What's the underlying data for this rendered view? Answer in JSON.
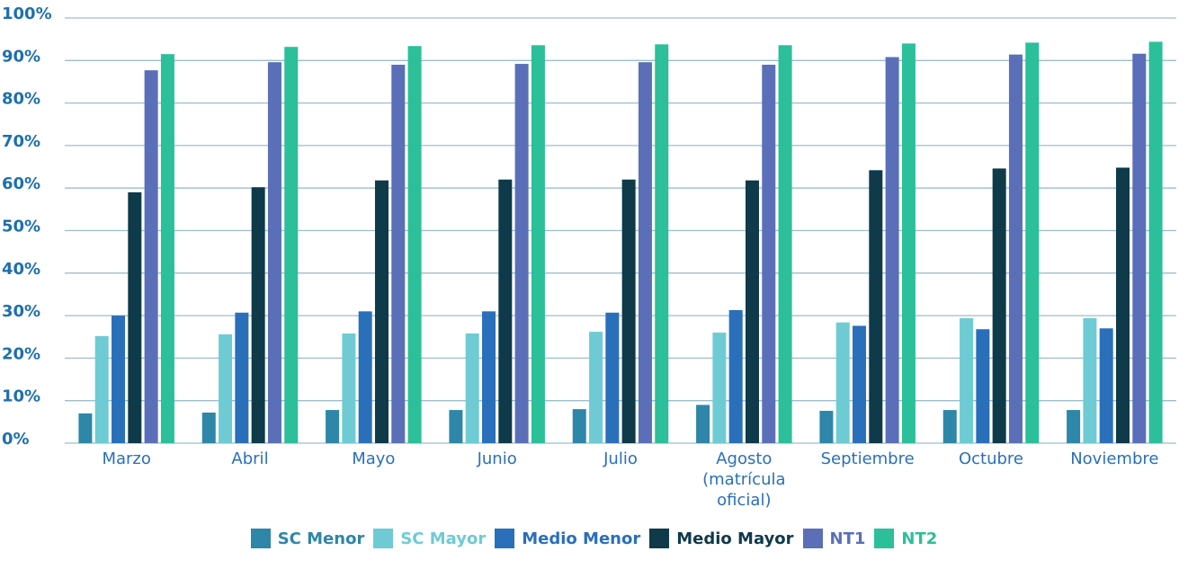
{
  "chart_data": {
    "type": "bar",
    "categories": [
      "Marzo",
      "Abril",
      "Mayo",
      "Junio",
      "Julio",
      "Agosto (matrícula oficial)",
      "Septiembre",
      "Octubre",
      "Noviembre"
    ],
    "series": [
      {
        "name": "SC Menor",
        "color": "#2e86a8",
        "values": [
          7.0,
          7.2,
          7.8,
          7.8,
          8.0,
          9.0,
          7.6,
          7.8,
          7.8
        ]
      },
      {
        "name": "SC Mayor",
        "color": "#6ecbd3",
        "values": [
          25.2,
          25.6,
          25.8,
          25.8,
          26.2,
          26.0,
          28.4,
          29.4,
          29.4
        ]
      },
      {
        "name": "Medio Menor",
        "color": "#2a6fba",
        "values": [
          30.0,
          30.7,
          31.0,
          31.0,
          30.7,
          31.3,
          27.6,
          26.8,
          27.0
        ]
      },
      {
        "name": "Medio Mayor",
        "color": "#0e3a4a",
        "values": [
          59.0,
          60.2,
          61.8,
          62.0,
          62.0,
          61.8,
          64.2,
          64.6,
          64.8
        ]
      },
      {
        "name": "NT1",
        "color": "#5b6fb8",
        "values": [
          87.7,
          89.6,
          89.0,
          89.2,
          89.6,
          89.0,
          90.8,
          91.4,
          91.6
        ]
      },
      {
        "name": "NT2",
        "color": "#2bbf9a",
        "values": [
          91.5,
          93.2,
          93.4,
          93.6,
          93.8,
          93.6,
          94.0,
          94.2,
          94.4
        ]
      }
    ],
    "ylim": [
      0,
      100
    ],
    "yticks": [
      {
        "value": 0,
        "label": "0%"
      },
      {
        "value": 10,
        "label": "10%"
      },
      {
        "value": 20,
        "label": "20%"
      },
      {
        "value": 30,
        "label": "30%"
      },
      {
        "value": 40,
        "label": "40%"
      },
      {
        "value": 50,
        "label": "50%"
      },
      {
        "value": 60,
        "label": "60%"
      },
      {
        "value": 70,
        "label": "70%"
      },
      {
        "value": 80,
        "label": "80%"
      },
      {
        "value": 90,
        "label": "90%"
      },
      {
        "value": 100,
        "label": "100%"
      }
    ],
    "grid": true,
    "legend": "bottom"
  }
}
